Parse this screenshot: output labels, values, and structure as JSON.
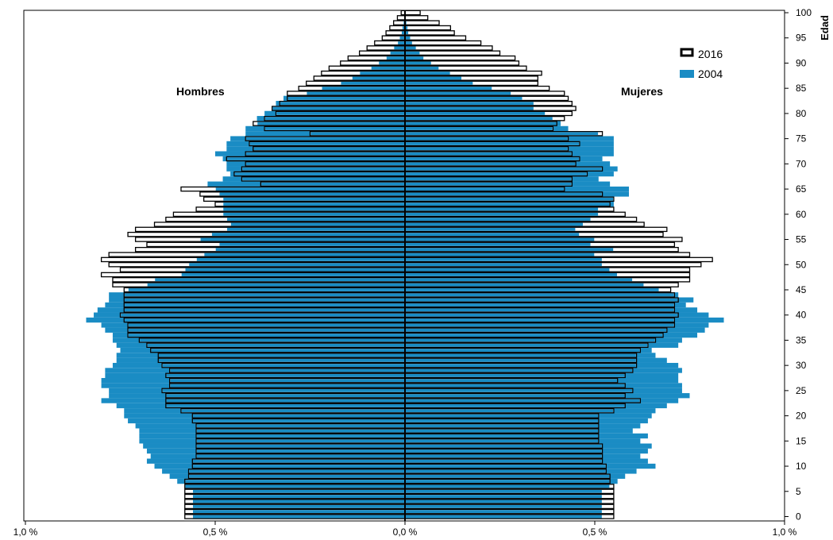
{
  "colors": {
    "background": "#ffffff",
    "series_2004": "#1a8cc4",
    "series_2016": "#ffffff",
    "outline_2016": "#000000",
    "axis": "#000000"
  },
  "chart_data": {
    "type": "bar",
    "orientation": "horizontal",
    "subtype": "population-pyramid",
    "title": "",
    "ylabel": "Edad",
    "xlabel": "",
    "side_labels": {
      "left": "Hombres",
      "right": "Mujeres"
    },
    "xlim": [
      -1.0,
      1.0
    ],
    "ylim": [
      0,
      100
    ],
    "x_ticks": [
      -1.0,
      -0.5,
      0.0,
      0.5,
      1.0
    ],
    "x_tick_labels": [
      "1,0 %",
      "0,5 %",
      "0,0 %",
      "0,5 %",
      "1,0 %"
    ],
    "y_ticks": [
      0,
      5,
      10,
      15,
      20,
      25,
      30,
      35,
      40,
      45,
      50,
      55,
      60,
      65,
      70,
      75,
      80,
      85,
      90,
      95,
      100
    ],
    "y_tick_labels": [
      "0",
      "5",
      "10",
      "15",
      "20",
      "25",
      "30",
      "35",
      "40",
      "45",
      "50",
      "55",
      "60",
      "65",
      "70",
      "75",
      "80",
      "85",
      "90",
      "95",
      "100"
    ],
    "legend": {
      "position": "top-right",
      "entries": [
        {
          "label": "2016",
          "style": "outline"
        },
        {
          "label": "2004",
          "style": "filled"
        }
      ]
    },
    "grid": false,
    "ages": [
      0,
      1,
      2,
      3,
      4,
      5,
      6,
      7,
      8,
      9,
      10,
      11,
      12,
      13,
      14,
      15,
      16,
      17,
      18,
      19,
      20,
      21,
      22,
      23,
      24,
      25,
      26,
      27,
      28,
      29,
      30,
      31,
      32,
      33,
      34,
      35,
      36,
      37,
      38,
      39,
      40,
      41,
      42,
      43,
      44,
      45,
      46,
      47,
      48,
      49,
      50,
      51,
      52,
      53,
      54,
      55,
      56,
      57,
      58,
      59,
      60,
      61,
      62,
      63,
      64,
      65,
      66,
      67,
      68,
      69,
      70,
      71,
      72,
      73,
      74,
      75,
      76,
      77,
      78,
      79,
      80,
      81,
      82,
      83,
      84,
      85,
      86,
      87,
      88,
      89,
      90,
      91,
      92,
      93,
      94,
      95,
      96,
      97,
      98,
      99,
      100
    ],
    "series": [
      {
        "name": "2004",
        "style": "filled",
        "men": [
          0.56,
          0.56,
          0.56,
          0.56,
          0.56,
          0.56,
          0.58,
          0.6,
          0.62,
          0.64,
          0.66,
          0.68,
          0.67,
          0.68,
          0.69,
          0.7,
          0.7,
          0.7,
          0.71,
          0.73,
          0.74,
          0.74,
          0.76,
          0.8,
          0.78,
          0.78,
          0.8,
          0.8,
          0.79,
          0.79,
          0.77,
          0.76,
          0.76,
          0.75,
          0.76,
          0.77,
          0.77,
          0.79,
          0.8,
          0.84,
          0.82,
          0.81,
          0.79,
          0.78,
          0.78,
          0.73,
          0.68,
          0.66,
          0.59,
          0.58,
          0.57,
          0.55,
          0.53,
          0.5,
          0.49,
          0.54,
          0.51,
          0.47,
          0.46,
          0.47,
          0.48,
          0.48,
          0.48,
          0.48,
          0.49,
          0.5,
          0.52,
          0.48,
          0.46,
          0.47,
          0.47,
          0.48,
          0.5,
          0.47,
          0.47,
          0.46,
          0.42,
          0.42,
          0.39,
          0.39,
          0.37,
          0.35,
          0.34,
          0.32,
          0.26,
          0.22,
          0.17,
          0.14,
          0.12,
          0.09,
          0.07,
          0.05,
          0.04,
          0.03,
          0.02,
          0.015,
          0.01,
          0.008,
          0.005,
          0.003,
          0.002
        ],
        "women": [
          0.52,
          0.52,
          0.52,
          0.52,
          0.52,
          0.52,
          0.54,
          0.56,
          0.58,
          0.61,
          0.66,
          0.64,
          0.62,
          0.64,
          0.65,
          0.62,
          0.64,
          0.6,
          0.62,
          0.64,
          0.65,
          0.66,
          0.69,
          0.72,
          0.75,
          0.73,
          0.73,
          0.72,
          0.72,
          0.73,
          0.72,
          0.69,
          0.66,
          0.65,
          0.72,
          0.73,
          0.77,
          0.79,
          0.8,
          0.84,
          0.8,
          0.77,
          0.74,
          0.76,
          0.72,
          0.67,
          0.63,
          0.6,
          0.56,
          0.54,
          0.52,
          0.52,
          0.5,
          0.55,
          0.49,
          0.5,
          0.46,
          0.45,
          0.47,
          0.49,
          0.51,
          0.51,
          0.55,
          0.55,
          0.59,
          0.59,
          0.54,
          0.51,
          0.55,
          0.56,
          0.54,
          0.52,
          0.55,
          0.55,
          0.55,
          0.55,
          0.51,
          0.43,
          0.41,
          0.39,
          0.37,
          0.34,
          0.34,
          0.31,
          0.28,
          0.23,
          0.18,
          0.15,
          0.12,
          0.09,
          0.07,
          0.05,
          0.04,
          0.03,
          0.02,
          0.015,
          0.01,
          0.008,
          0.005,
          0.003,
          0.002
        ]
      },
      {
        "name": "2016",
        "style": "outline",
        "men": [
          0.58,
          0.58,
          0.58,
          0.58,
          0.58,
          0.58,
          0.58,
          0.58,
          0.57,
          0.57,
          0.56,
          0.56,
          0.55,
          0.55,
          0.55,
          0.55,
          0.55,
          0.55,
          0.55,
          0.56,
          0.56,
          0.59,
          0.63,
          0.63,
          0.63,
          0.64,
          0.62,
          0.62,
          0.63,
          0.62,
          0.64,
          0.65,
          0.65,
          0.67,
          0.68,
          0.7,
          0.73,
          0.73,
          0.73,
          0.74,
          0.75,
          0.74,
          0.74,
          0.74,
          0.74,
          0.74,
          0.77,
          0.77,
          0.8,
          0.75,
          0.78,
          0.8,
          0.78,
          0.71,
          0.68,
          0.71,
          0.73,
          0.71,
          0.66,
          0.63,
          0.61,
          0.55,
          0.5,
          0.53,
          0.54,
          0.59,
          0.38,
          0.43,
          0.45,
          0.43,
          0.42,
          0.47,
          0.42,
          0.4,
          0.41,
          0.42,
          0.25,
          0.37,
          0.4,
          0.37,
          0.34,
          0.35,
          0.33,
          0.31,
          0.31,
          0.28,
          0.26,
          0.24,
          0.22,
          0.2,
          0.17,
          0.15,
          0.12,
          0.1,
          0.08,
          0.06,
          0.05,
          0.04,
          0.03,
          0.02,
          0.01
        ],
        "women": [
          0.55,
          0.55,
          0.55,
          0.55,
          0.55,
          0.55,
          0.55,
          0.54,
          0.54,
          0.53,
          0.53,
          0.52,
          0.52,
          0.52,
          0.52,
          0.51,
          0.51,
          0.51,
          0.51,
          0.51,
          0.51,
          0.55,
          0.58,
          0.62,
          0.58,
          0.6,
          0.58,
          0.56,
          0.58,
          0.6,
          0.61,
          0.61,
          0.61,
          0.62,
          0.64,
          0.66,
          0.68,
          0.69,
          0.71,
          0.71,
          0.72,
          0.71,
          0.71,
          0.72,
          0.71,
          0.7,
          0.72,
          0.75,
          0.75,
          0.75,
          0.78,
          0.81,
          0.75,
          0.72,
          0.71,
          0.73,
          0.68,
          0.69,
          0.63,
          0.61,
          0.58,
          0.55,
          0.54,
          0.55,
          0.52,
          0.42,
          0.44,
          0.44,
          0.48,
          0.52,
          0.45,
          0.46,
          0.44,
          0.43,
          0.46,
          0.43,
          0.52,
          0.39,
          0.4,
          0.42,
          0.44,
          0.45,
          0.44,
          0.43,
          0.42,
          0.38,
          0.35,
          0.35,
          0.36,
          0.32,
          0.3,
          0.29,
          0.25,
          0.23,
          0.2,
          0.16,
          0.13,
          0.12,
          0.09,
          0.06,
          0.04
        ]
      }
    ]
  }
}
